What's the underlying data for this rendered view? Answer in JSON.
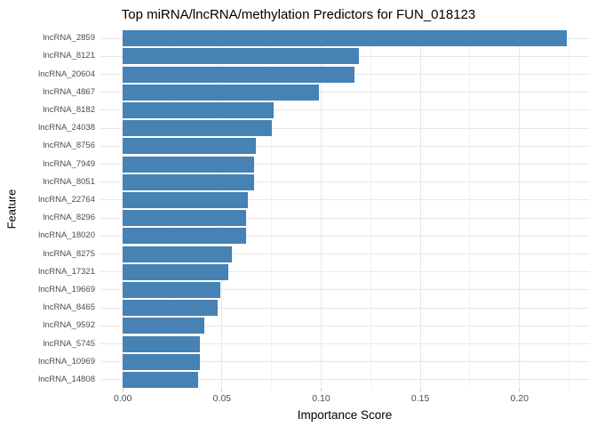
{
  "chart_data": {
    "type": "bar",
    "orientation": "horizontal",
    "title": "Top miRNA/lncRNA/methylation Predictors for FUN_018123",
    "xlabel": "Importance Score",
    "ylabel": "Feature",
    "categories": [
      "lncRNA_2859",
      "lncRNA_8121",
      "lncRNA_20604",
      "lncRNA_4867",
      "lncRNA_8182",
      "lncRNA_24038",
      "lncRNA_8756",
      "lncRNA_7949",
      "lncRNA_8051",
      "lncRNA_22764",
      "lncRNA_8296",
      "lncRNA_18020",
      "lncRNA_8275",
      "lncRNA_17321",
      "lncRNA_19669",
      "lncRNA_8465",
      "lncRNA_9592",
      "lncRNA_5745",
      "lncRNA_10969",
      "lncRNA_14808"
    ],
    "values": [
      0.224,
      0.119,
      0.117,
      0.099,
      0.076,
      0.075,
      0.067,
      0.066,
      0.066,
      0.063,
      0.062,
      0.062,
      0.055,
      0.053,
      0.049,
      0.048,
      0.041,
      0.039,
      0.039,
      0.038
    ],
    "bar_color": "#4682B4",
    "x_axis": {
      "tick_values": [
        0,
        0.05,
        0.1,
        0.15,
        0.2
      ],
      "tick_labels": [
        "0.00",
        "0.05",
        "0.10",
        "0.15",
        "0.20"
      ],
      "minor_tick_values": [
        0.025,
        0.075,
        0.125,
        0.175,
        0.225
      ],
      "display_min": -0.0113,
      "display_max": 0.2355
    },
    "grid": {
      "show": true,
      "major_color": "#e7e7e7",
      "minor_color": "#f3f3f3"
    },
    "legend": "none",
    "text_color": "#4d4d4d"
  }
}
